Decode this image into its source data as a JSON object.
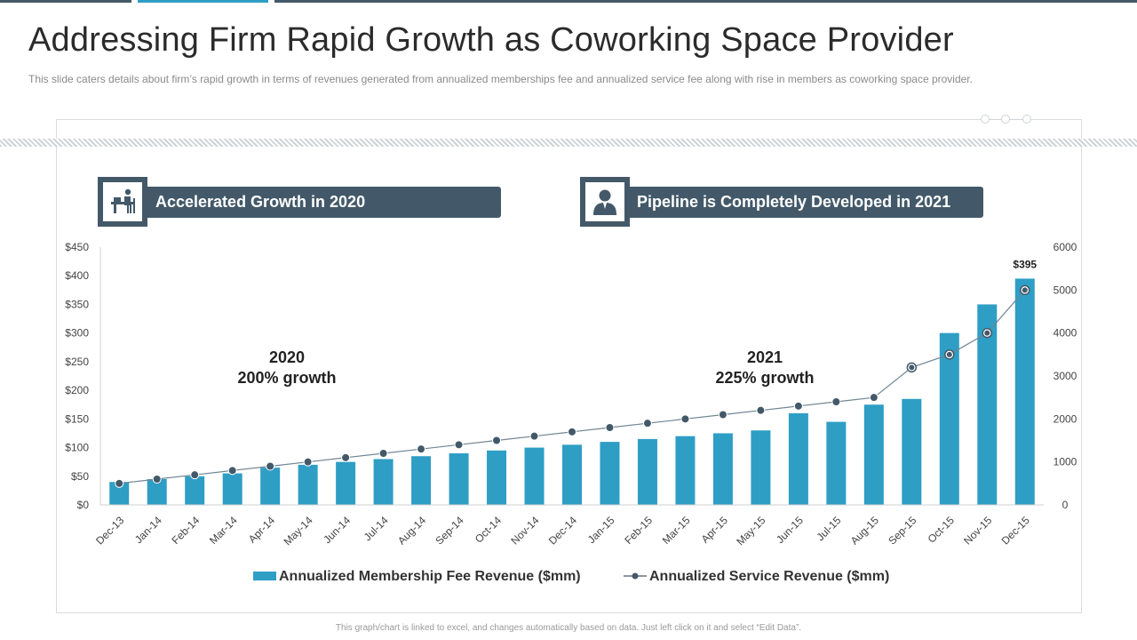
{
  "title": "Addressing Firm Rapid Growth as Coworking Space Provider",
  "subtitle": "This slide caters details about firm’s rapid growth in terms of revenues generated from annualized memberships fee and annualized service fee along with rise in members as coworking space provider.",
  "banners": {
    "left": {
      "label": "Accelerated Growth in 2020",
      "icon": "desk-worker-icon"
    },
    "right": {
      "label": "Pipeline is Completely Developed in 2021",
      "icon": "person-icon"
    }
  },
  "annotations": [
    {
      "year": "2020",
      "text": "200% growth"
    },
    {
      "year": "2021",
      "text": "225% growth"
    }
  ],
  "footer": "This graph/chart is linked to excel, and changes automatically based on data. Just left click on it and select “Edit Data”.",
  "colors": {
    "bar": "#2e9ec5",
    "line": "#435969",
    "banner": "#435969",
    "topbar_dark": "#435969",
    "topbar_accent": "#2e9ec5"
  },
  "chart_data": {
    "type": "bar+line",
    "categories": [
      "Dec-13",
      "Jan-14",
      "Feb-14",
      "Mar-14",
      "Apr-14",
      "May-14",
      "Jun-14",
      "Jul-14",
      "Aug-14",
      "Sep-14",
      "Oct-14",
      "Nov-14",
      "Dec-14",
      "Jan-15",
      "Feb-15",
      "Mar-15",
      "Apr-15",
      "May-15",
      "Jun-15",
      "Jul-15",
      "Aug-15",
      "Sep-15",
      "Oct-15",
      "Nov-15",
      "Dec-15"
    ],
    "series": [
      {
        "name": "Annualized Membership Fee Revenue ($mm)",
        "type": "bar",
        "axis": "left",
        "values": [
          40,
          45,
          50,
          55,
          65,
          70,
          75,
          80,
          85,
          90,
          95,
          100,
          105,
          110,
          115,
          120,
          125,
          130,
          160,
          145,
          175,
          185,
          300,
          350,
          395
        ]
      },
      {
        "name": "Annualized Service Revenue ($mm)",
        "type": "line",
        "axis": "right",
        "values": [
          500,
          600,
          700,
          800,
          900,
          1000,
          1100,
          1200,
          1300,
          1400,
          1500,
          1600,
          1700,
          1800,
          1900,
          2000,
          2100,
          2200,
          2300,
          2400,
          2500,
          3200,
          3500,
          4000,
          5000
        ]
      }
    ],
    "y_left": {
      "min": 0,
      "max": 450,
      "step": 50,
      "ticks": [
        "$0",
        "$50",
        "$100",
        "$150",
        "$200",
        "$250",
        "$300",
        "$350",
        "$400",
        "$450"
      ]
    },
    "y_right": {
      "min": 0,
      "max": 6000,
      "step": 1000,
      "ticks": [
        "0",
        "1000",
        "2000",
        "3000",
        "4000",
        "5000",
        "6000"
      ]
    },
    "data_labels": [
      {
        "category": "Dec-15",
        "text": "$395"
      }
    ],
    "legend": "bottom"
  }
}
